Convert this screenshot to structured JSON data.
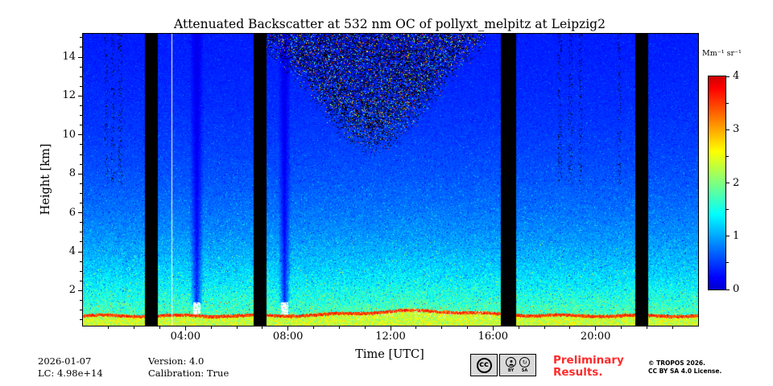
{
  "title": "Attenuated Backscatter at 532 nm OC of pollyxt_melpitz at Leipzig2",
  "axes": {
    "x": {
      "label": "Time [UTC]",
      "ticks": [
        "04:00",
        "08:00",
        "12:00",
        "16:00",
        "20:00"
      ],
      "tick_hours": [
        4,
        8,
        12,
        16,
        20
      ],
      "range_hours": [
        0,
        24
      ]
    },
    "y": {
      "label": "Height [km]",
      "ticks": [
        2,
        4,
        6,
        8,
        10,
        12,
        14
      ],
      "range_km": [
        0.2,
        15.2
      ]
    }
  },
  "colorbar": {
    "label": "Mm⁻¹ sr⁻¹",
    "ticks": [
      0,
      1,
      2,
      3,
      4
    ],
    "range": [
      0,
      4
    ],
    "colormap": "jet"
  },
  "footer": {
    "date": "2026-01-07",
    "lc": "LC: 4.98e+14",
    "version": "Version: 4.0",
    "calibration": "Calibration: True",
    "preliminary": [
      "Preliminary",
      "Results."
    ],
    "copyright": [
      "© TROPOS 2026.",
      "CC BY SA 4.0 License."
    ],
    "cc_badge": {
      "cc": "cc",
      "by": "BY",
      "sa": "SA",
      "sa_glyph": "↻"
    }
  },
  "colors": {
    "preliminary": "#ff2a2a",
    "axis": "#000000",
    "background": "#ffffff"
  },
  "chart_data": {
    "type": "heatmap",
    "title": "Attenuated Backscatter at 532 nm OC of pollyxt_melpitz at Leipzig2",
    "xlabel": "Time [UTC]",
    "ylabel": "Height [km]",
    "colorbar_label": "Mm⁻¹ sr⁻¹",
    "colormap": "jet",
    "x_range_hours": [
      0,
      24
    ],
    "y_range_km": [
      0.2,
      15.2
    ],
    "value_range": [
      0,
      4
    ],
    "background_profile": {
      "offset": 0.27,
      "surface_value": 1.45,
      "scale_height_km": 4.6
    },
    "aerosol_layer": {
      "base_top_km": 0.8,
      "midday_bump_km": 0.25,
      "bump_center_h": 13,
      "bump_width_h": 3,
      "top_edge_value": 3.3,
      "top_edge_thickness_km": 0.15,
      "inner_value": 2.1,
      "ground_value": 3.0
    },
    "data_gaps_hours": [
      [
        2.4,
        2.9
      ],
      [
        6.65,
        7.15
      ],
      [
        16.3,
        16.9
      ],
      [
        21.52,
        22.05
      ]
    ],
    "cloud_streaks_hours": [
      [
        4.15,
        4.7
      ],
      [
        7.6,
        8.1
      ]
    ],
    "white_line_hour": 3.45,
    "daytime_noise": {
      "start_h": 7.0,
      "end_h": 15.7,
      "center_h": 11.3,
      "depth_km": 6.3,
      "width_h": 3.2,
      "max_density": 0.55
    },
    "sparse_speckle_columns_h": [
      0.9,
      1.15,
      1.45,
      18.6,
      19.0,
      19.4,
      20.9
    ],
    "seed": 7
  }
}
